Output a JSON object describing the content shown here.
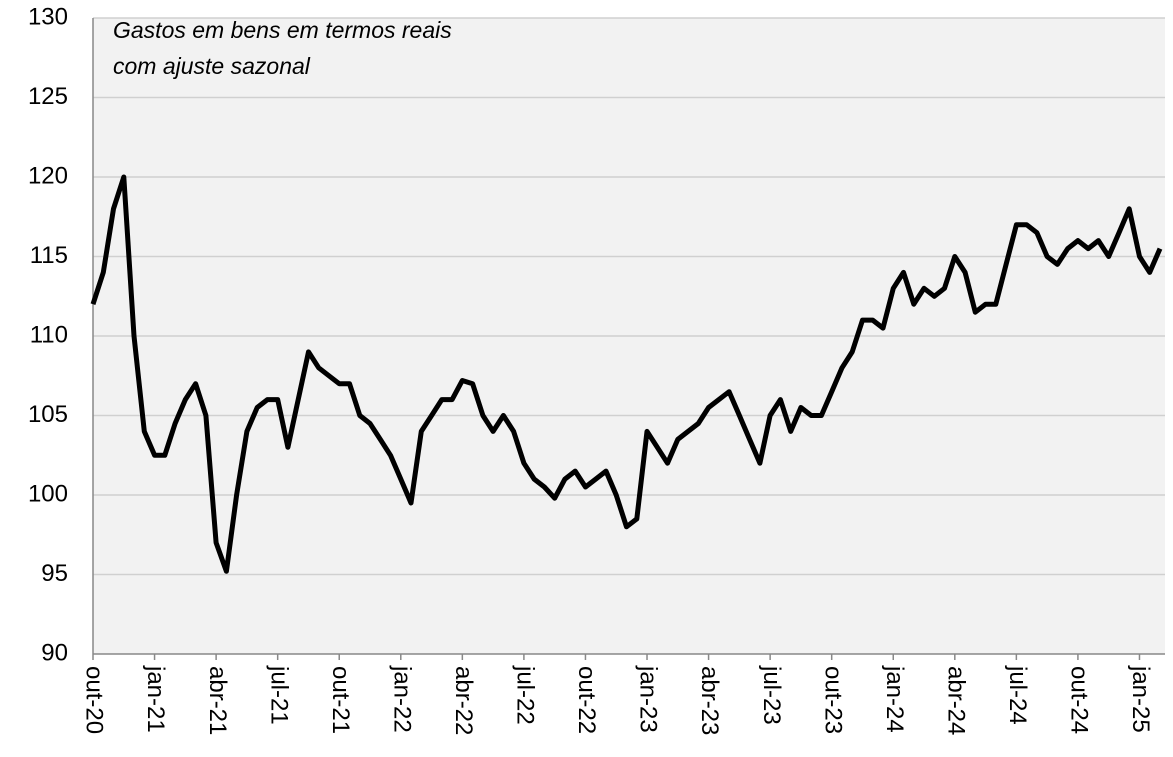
{
  "chart_data": {
    "type": "line",
    "annotation": [
      "Gastos em bens em termos reais",
      "com ajuste sazonal"
    ],
    "categories": [
      "out-20",
      null,
      null,
      null,
      null,
      null,
      "jan-21",
      null,
      null,
      null,
      null,
      null,
      "abr-21",
      null,
      null,
      null,
      null,
      null,
      "jul-21",
      null,
      null,
      null,
      null,
      null,
      "out-21",
      null,
      null,
      null,
      null,
      null,
      "jan-22",
      null,
      null,
      null,
      null,
      null,
      "abr-22",
      null,
      null,
      null,
      null,
      null,
      "jul-22",
      null,
      null,
      null,
      null,
      null,
      "out-22",
      null,
      null,
      null,
      null,
      null,
      "jan-23",
      null,
      null,
      null,
      null,
      null,
      "abr-23",
      null,
      null,
      null,
      null,
      null,
      "jul-23",
      null,
      null,
      null,
      null,
      null,
      "out-23",
      null,
      null,
      null,
      null,
      null,
      "jan-24",
      null,
      null,
      null,
      null,
      null,
      "abr-24",
      null,
      null,
      null,
      null,
      null,
      "jul-24",
      null,
      null,
      null,
      null,
      null,
      "out-24",
      null,
      null,
      null,
      null,
      null,
      "jan-25",
      null,
      null
    ],
    "values": [
      112,
      114,
      118,
      120,
      110,
      104,
      102.5,
      102.5,
      104.5,
      106,
      107,
      105,
      97,
      95.2,
      100,
      104,
      105.5,
      106,
      106,
      103,
      106,
      109,
      108,
      107.5,
      107,
      107,
      105,
      104.5,
      103.5,
      102.5,
      101,
      99.5,
      104,
      105,
      106,
      106,
      107.2,
      107,
      105,
      104,
      105,
      104,
      102,
      101,
      100.5,
      99.8,
      101,
      101.5,
      100.5,
      101,
      101.5,
      100,
      98,
      98.5,
      104,
      103,
      102,
      103.5,
      104,
      104.5,
      105.5,
      106,
      106.5,
      105,
      103.5,
      102,
      105,
      106,
      104,
      105.5,
      105,
      105,
      106.5,
      108,
      109,
      111,
      111,
      110.5,
      113,
      114,
      112,
      113,
      112.5,
      113,
      115,
      114,
      111.5,
      112,
      112,
      114.5,
      117,
      117,
      116.5,
      115,
      114.5,
      115.5,
      116,
      115.5,
      116,
      115,
      116.5,
      118,
      115,
      114,
      115.5
    ],
    "color": "#000000",
    "ylim": [
      90,
      130
    ],
    "yticks": [
      90,
      95,
      100,
      105,
      110,
      115,
      120,
      125,
      130
    ],
    "grid": true
  }
}
